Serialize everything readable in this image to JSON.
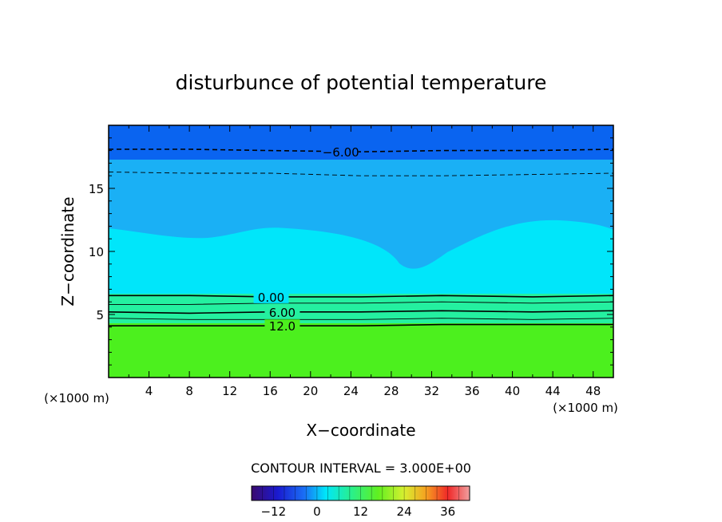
{
  "chart_data": {
    "type": "heatmap",
    "title": "disturbunce of potential temperature",
    "xlabel": "X−coordinate",
    "ylabel": "Z−coordinate",
    "x_unit_left": "(×1000 m)",
    "x_unit_right": "(×1000 m)",
    "xlim": [
      0,
      50
    ],
    "ylim": [
      0,
      20
    ],
    "x_ticks": [
      4,
      8,
      12,
      16,
      20,
      24,
      28,
      32,
      36,
      40,
      44,
      48
    ],
    "y_ticks": [
      5,
      10,
      15
    ],
    "contour_interval_label": "CONTOUR INTERVAL = 3.000E+00",
    "contour_interval": 3,
    "contours": [
      {
        "label": "−6.00",
        "value": -6,
        "dashed": true,
        "heights_km": [
          18.1,
          18.1,
          18.0,
          17.9,
          18.0,
          18.0,
          18.1
        ]
      },
      {
        "label": "",
        "value": -3,
        "dashed": true,
        "heights_km": [
          16.3,
          16.2,
          16.2,
          16.0,
          16.0,
          16.1,
          16.2
        ]
      },
      {
        "label": "0.00",
        "value": 0,
        "dashed": false,
        "heights_km": [
          6.5,
          6.5,
          6.4,
          6.4,
          6.5,
          6.4,
          6.5
        ]
      },
      {
        "label": "",
        "value": 3,
        "dashed": false,
        "heights_km": [
          5.8,
          5.8,
          5.9,
          5.9,
          6.0,
          5.9,
          6.0
        ]
      },
      {
        "label": "6.00",
        "value": 6,
        "dashed": false,
        "heights_km": [
          5.2,
          5.1,
          5.2,
          5.2,
          5.3,
          5.2,
          5.3
        ]
      },
      {
        "label": "",
        "value": 9,
        "dashed": false,
        "heights_km": [
          4.7,
          4.6,
          4.6,
          4.6,
          4.7,
          4.6,
          4.7
        ]
      },
      {
        "label": "12.0",
        "value": 12,
        "dashed": false,
        "heights_km": [
          4.1,
          4.1,
          4.1,
          4.1,
          4.2,
          4.2,
          4.2
        ]
      }
    ],
    "contour_x_km": [
      0,
      8,
      16,
      25,
      33,
      42,
      50
    ],
    "colorbar": {
      "min": -18,
      "max": 42,
      "ticks": [
        "−12",
        "0",
        "12",
        "24",
        "36"
      ],
      "tick_values": [
        -12,
        0,
        12,
        24,
        36
      ]
    },
    "colors": {
      "top_band": "#0a64f0",
      "upper_band": "#1ab0f5",
      "mid_band": "#00e6fa",
      "transition_band": "#24f0a0",
      "lower_band": "#4cf01e"
    }
  }
}
